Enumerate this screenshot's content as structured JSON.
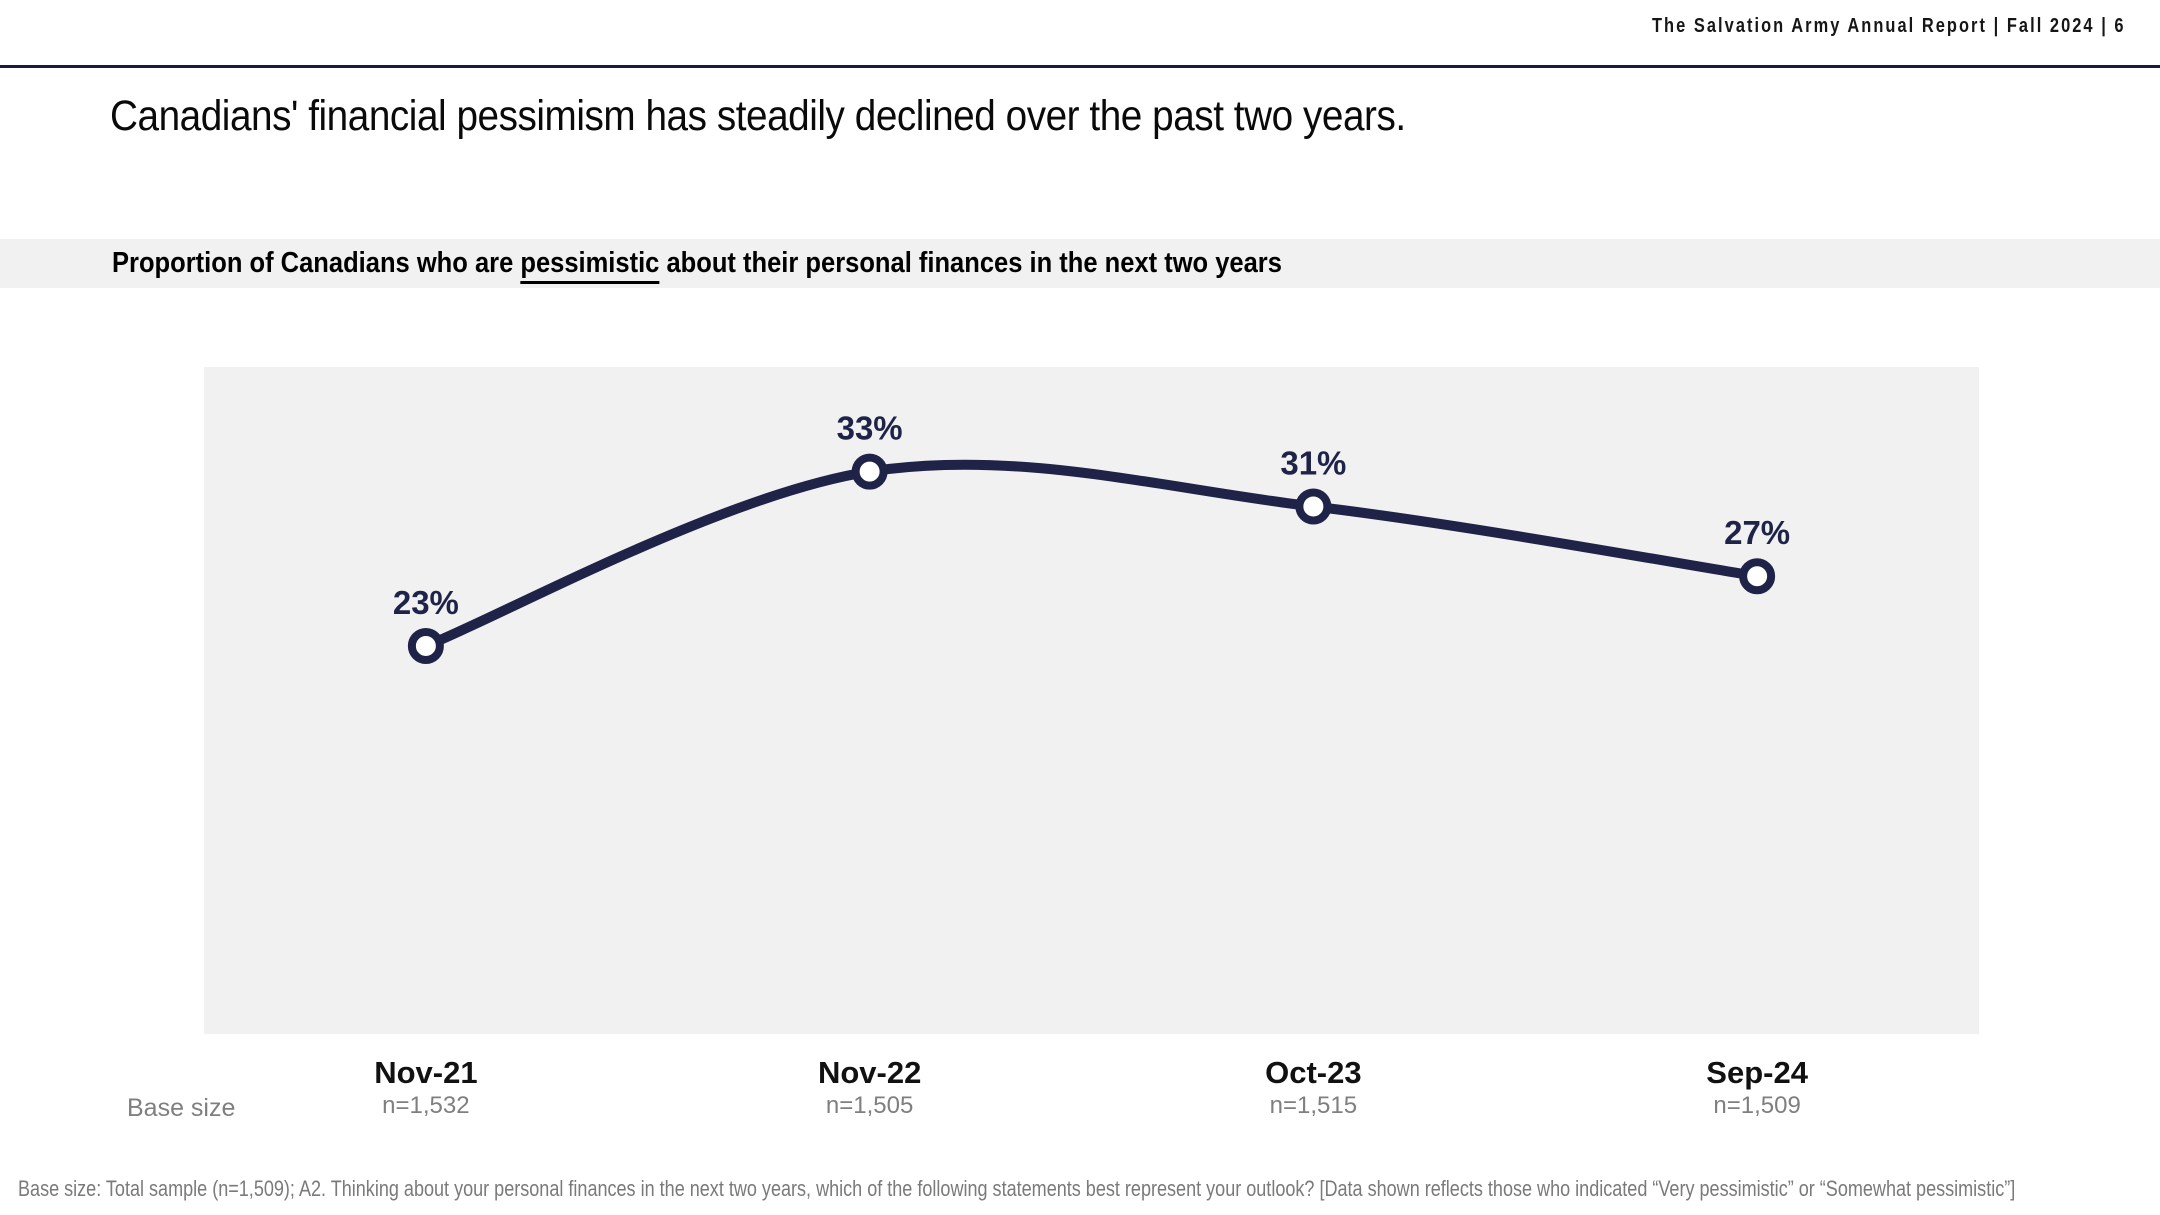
{
  "header": {
    "report_title": "The Salvation Army Annual Report | Fall 2024 | 6"
  },
  "slide": {
    "title": "Canadians' financial pessimism has steadily declined over the past two years.",
    "subtitle": {
      "prefix": "Proportion of Canadians who are ",
      "emphasized": "pessimistic",
      "suffix": " about their personal finances in the next two years"
    },
    "footnote": "Base size: Total sample (n=1,509); A2. Thinking about your personal finances in the next two years, which of the following statements best represent your outlook? [Data shown reflects those who indicated “Very pessimistic” or “Somewhat pessimistic”]"
  },
  "chart_data": {
    "type": "line",
    "title": "Proportion of Canadians who are pessimistic about their personal finances in the next two years",
    "categories": [
      "Nov-21",
      "Nov-22",
      "Oct-23",
      "Sep-24"
    ],
    "values": [
      23,
      33,
      31,
      27
    ],
    "point_labels": [
      "23%",
      "33%",
      "31%",
      "27%"
    ],
    "base_size_row_label": "Base size",
    "base_sizes": [
      "n=1,532",
      "n=1,505",
      "n=1,515",
      "n=1,509"
    ],
    "ylim": [
      0,
      39
    ],
    "grid": false,
    "legend": "none",
    "colors": {
      "line": "#1f2347",
      "marker_fill": "#ffffff",
      "plot_background": "#f1f1f1",
      "label_text": "#1f2347"
    }
  }
}
